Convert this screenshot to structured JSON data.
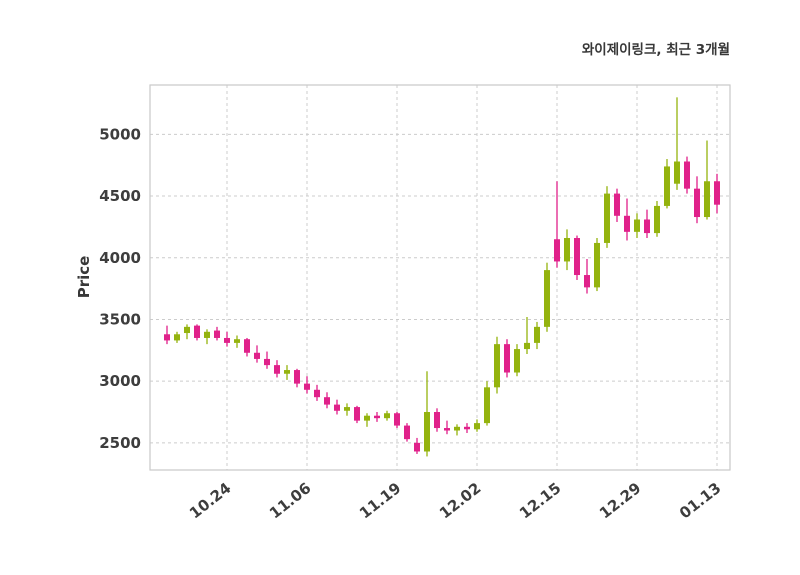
{
  "chart_data": {
    "type": "candlestick",
    "title": "와이제이링크, 최근 3개월",
    "ylabel": "Price",
    "up_color": "#94b30e",
    "down_color": "#e0218a",
    "grid_color": "#cccccc",
    "text_color": "#3d3d3d",
    "background": "#ffffff",
    "grid": "on",
    "ylim": [
      2280,
      5400
    ],
    "yticks": [
      2500,
      3000,
      3500,
      4000,
      4500,
      5000
    ],
    "xticks": [
      {
        "index": 6,
        "label": "10.24"
      },
      {
        "index": 14,
        "label": "11.06"
      },
      {
        "index": 23,
        "label": "11.19"
      },
      {
        "index": 31,
        "label": "12.02"
      },
      {
        "index": 39,
        "label": "12.15"
      },
      {
        "index": 47,
        "label": "12.29"
      },
      {
        "index": 55,
        "label": "01.13"
      }
    ],
    "candles_format": [
      "open",
      "high",
      "low",
      "close"
    ],
    "candles": [
      [
        3380,
        3450,
        3300,
        3330
      ],
      [
        3330,
        3400,
        3310,
        3380
      ],
      [
        3390,
        3460,
        3340,
        3440
      ],
      [
        3450,
        3460,
        3330,
        3350
      ],
      [
        3350,
        3420,
        3300,
        3400
      ],
      [
        3410,
        3440,
        3330,
        3350
      ],
      [
        3350,
        3400,
        3280,
        3310
      ],
      [
        3310,
        3370,
        3270,
        3340
      ],
      [
        3340,
        3350,
        3200,
        3230
      ],
      [
        3230,
        3290,
        3150,
        3180
      ],
      [
        3180,
        3240,
        3100,
        3130
      ],
      [
        3130,
        3170,
        3030,
        3060
      ],
      [
        3060,
        3130,
        3010,
        3090
      ],
      [
        3090,
        3100,
        2950,
        2980
      ],
      [
        2980,
        3040,
        2900,
        2930
      ],
      [
        2930,
        2970,
        2840,
        2870
      ],
      [
        2870,
        2910,
        2780,
        2810
      ],
      [
        2810,
        2850,
        2730,
        2760
      ],
      [
        2760,
        2820,
        2720,
        2790
      ],
      [
        2790,
        2800,
        2660,
        2680
      ],
      [
        2680,
        2740,
        2630,
        2720
      ],
      [
        2720,
        2750,
        2670,
        2700
      ],
      [
        2700,
        2760,
        2680,
        2740
      ],
      [
        2740,
        2750,
        2620,
        2640
      ],
      [
        2640,
        2660,
        2510,
        2530
      ],
      [
        2500,
        2540,
        2410,
        2430
      ],
      [
        2430,
        3080,
        2390,
        2750
      ],
      [
        2750,
        2780,
        2590,
        2620
      ],
      [
        2620,
        2680,
        2570,
        2600
      ],
      [
        2600,
        2650,
        2560,
        2630
      ],
      [
        2630,
        2660,
        2580,
        2610
      ],
      [
        2610,
        2690,
        2590,
        2660
      ],
      [
        2660,
        3000,
        2640,
        2950
      ],
      [
        2950,
        3360,
        2900,
        3300
      ],
      [
        3300,
        3340,
        3030,
        3070
      ],
      [
        3070,
        3300,
        3040,
        3260
      ],
      [
        3260,
        3520,
        3220,
        3310
      ],
      [
        3310,
        3480,
        3260,
        3440
      ],
      [
        3440,
        3960,
        3400,
        3900
      ],
      [
        4150,
        4620,
        3920,
        3970
      ],
      [
        3970,
        4230,
        3900,
        4160
      ],
      [
        4160,
        4180,
        3820,
        3860
      ],
      [
        3860,
        3990,
        3710,
        3760
      ],
      [
        3760,
        4160,
        3730,
        4120
      ],
      [
        4120,
        4580,
        4080,
        4520
      ],
      [
        4520,
        4560,
        4290,
        4340
      ],
      [
        4340,
        4480,
        4140,
        4210
      ],
      [
        4210,
        4360,
        4160,
        4310
      ],
      [
        4310,
        4390,
        4160,
        4200
      ],
      [
        4200,
        4460,
        4170,
        4420
      ],
      [
        4420,
        4800,
        4400,
        4740
      ],
      [
        4600,
        5300,
        4550,
        4780
      ],
      [
        4780,
        4820,
        4520,
        4560
      ],
      [
        4560,
        4660,
        4280,
        4330
      ],
      [
        4330,
        4950,
        4310,
        4620
      ],
      [
        4620,
        4680,
        4360,
        4430
      ]
    ]
  }
}
